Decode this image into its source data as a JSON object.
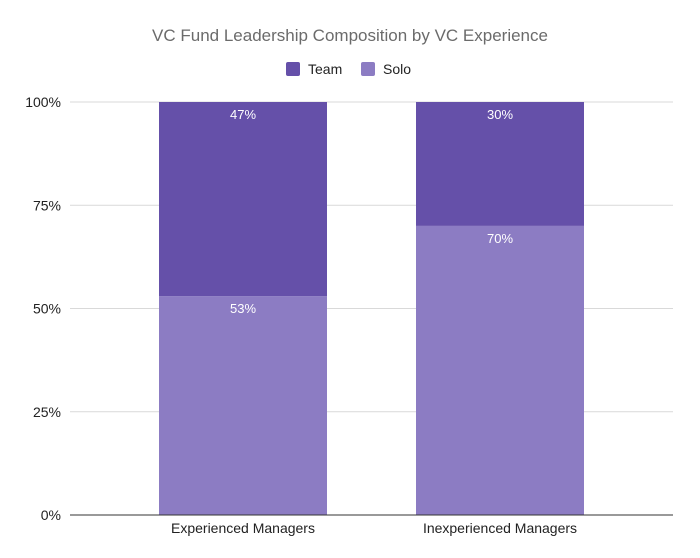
{
  "chart_data": {
    "type": "bar",
    "stacked": true,
    "title": "VC Fund Leadership Composition by VC Experience",
    "xlabel": "",
    "ylabel": "",
    "ylim": [
      0,
      100
    ],
    "y_ticks": [
      0,
      25,
      50,
      75,
      100
    ],
    "y_tick_labels": [
      "0%",
      "25%",
      "50%",
      "75%",
      "100%"
    ],
    "categories": [
      "Experienced Managers",
      "Inexperienced Managers"
    ],
    "series": [
      {
        "name": "Solo",
        "values": [
          53,
          70
        ],
        "labels": [
          "53%",
          "70%"
        ],
        "color": "#8c7cc3"
      },
      {
        "name": "Team",
        "values": [
          47,
          30
        ],
        "labels": [
          "47%",
          "30%"
        ],
        "color": "#6550a9"
      }
    ],
    "legend": {
      "placement": "top-center",
      "order": [
        "Team",
        "Solo"
      ]
    },
    "grid": true,
    "gridline_color": "#d9d9d9",
    "axis_color": "#333333"
  }
}
